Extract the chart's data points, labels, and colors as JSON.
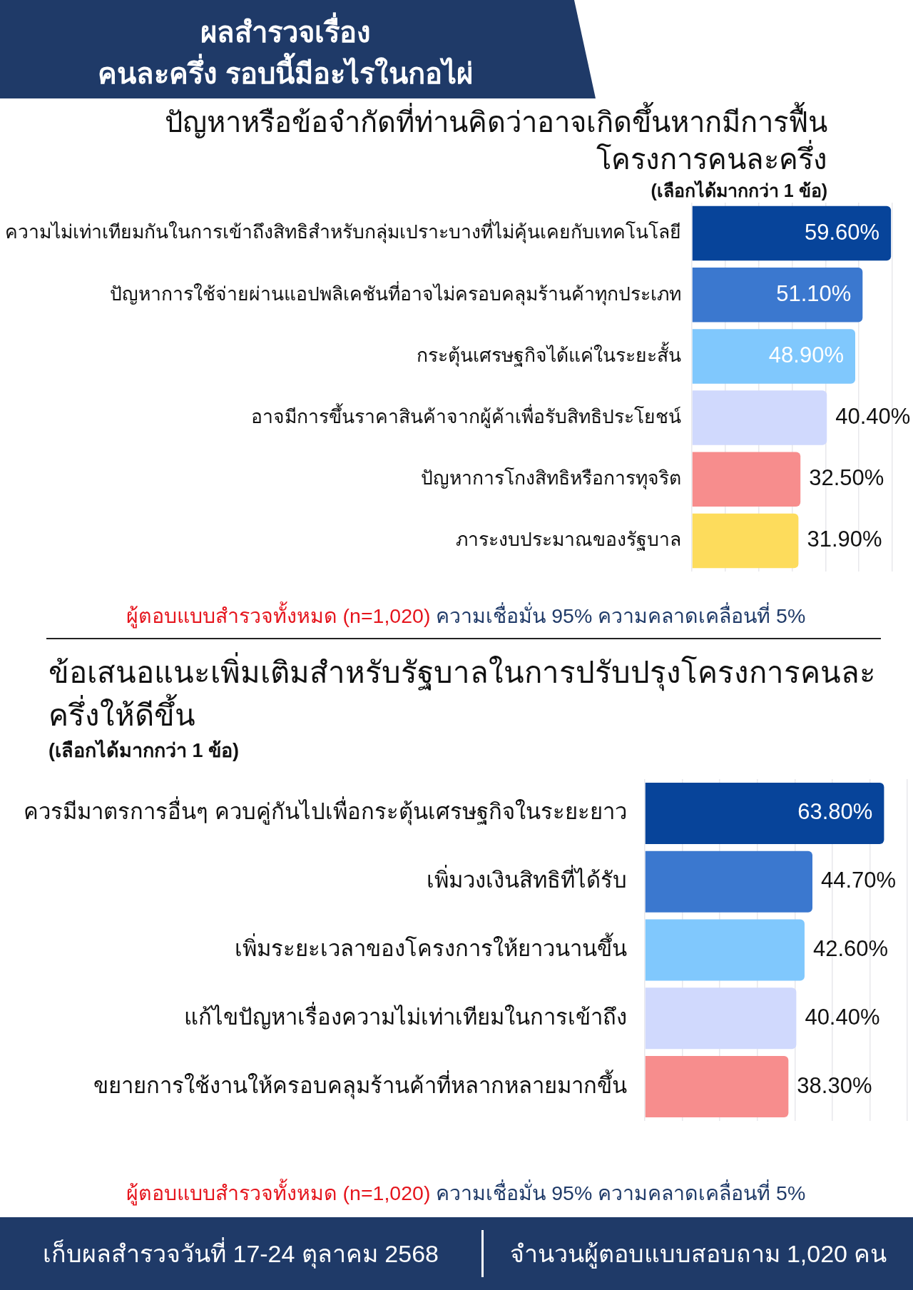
{
  "chart_data": [
    {
      "type": "other",
      "title": "ผลสำรวจเรื่อง\nคนละครึ่ง รอบนี้มีอะไรในกอไผ่"
    },
    {
      "type": "bar",
      "orientation": "horizontal",
      "title": "ปัญหาหรือข้อจำกัดที่ท่านคิดว่าอาจเกิดขึ้นหากมีการฟื้นโครงการคนละครึ่ง",
      "subtitle": "(เลือกได้มากกว่า 1 ข้อ)",
      "categories": [
        "ความไม่เท่าเทียมกันในการเข้าถึงสิทธิสำหรับกลุ่มเปราะบางที่ไม่คุ้นเคยกับเทคโนโลยี",
        "ปัญหาการใช้จ่ายผ่านแอปพลิเคชันที่อาจไม่ครอบคลุมร้านค้าทุกประเภท",
        "กระตุ้นเศรษฐกิจได้แค่ในระยะสั้น",
        "อาจมีการขึ้นราคาสินค้าจากผู้ค้าเพื่อรับสิทธิประโยชน์",
        "ปัญหาการโกงสิทธิหรือการทุจริต",
        "ภาระงบประมาณของรัฐบาล"
      ],
      "values": [
        59.6,
        51.1,
        48.9,
        40.4,
        32.5,
        31.9
      ],
      "value_labels": [
        "59.60%",
        "51.10%",
        "48.90%",
        "40.40%",
        "32.50%",
        "31.90%"
      ],
      "colors": [
        "#07449a",
        "#3b78cf",
        "#80c8fd",
        "#d0d9fd",
        "#f78d8d",
        "#fddc5c"
      ],
      "xlim": [
        0,
        60
      ],
      "xticks": [
        {
          "value": 0,
          "label": null
        },
        {
          "value": 10,
          "label": null
        },
        {
          "value": 20,
          "label": null
        },
        {
          "value": 30,
          "label": null
        },
        {
          "value": 40,
          "label": null
        },
        {
          "value": 50,
          "label": null
        },
        {
          "value": 60,
          "label": null
        }
      ],
      "grid": "x",
      "tick_labels": "y",
      "annotations": [
        "ผู้ตอบแบบสำรวจทั้งหมด (n=1,020)",
        "ความเชื่อมั่น 95% ความคลาดเคลื่อนที่ 5%"
      ]
    },
    {
      "type": "bar",
      "orientation": "horizontal",
      "title": "ข้อเสนอแนะเพิ่มเติมสำหรับรัฐบาลในการปรับปรุงโครงการคนละครึ่งให้ดีขึ้น",
      "subtitle": "(เลือกได้มากกว่า 1 ข้อ)",
      "categories": [
        "ควรมีมาตรการอื่นๆ ควบคู่กันไปเพื่อกระตุ้นเศรษฐกิจในระยะยาว",
        "เพิ่มวงเงินสิทธิที่ได้รับ",
        "เพิ่มระยะเวลาของโครงการให้ยาวนานขึ้น",
        "แก้ไขปัญหาเรื่องความไม่เท่าเทียมในการเข้าถึง",
        "ขยายการใช้งานให้ครอบคลุมร้านค้าที่หลากหลายมากขึ้น"
      ],
      "values": [
        63.8,
        44.7,
        42.6,
        40.4,
        38.3
      ],
      "value_labels": [
        "63.80%",
        "44.70%",
        "42.60%",
        "40.40%",
        "38.30%"
      ],
      "colors": [
        "#07449a",
        "#3b78cf",
        "#80c8fd",
        "#d0d9fd",
        "#f78d8d"
      ],
      "xlim": [
        0,
        70
      ],
      "xticks": [
        {
          "value": 0,
          "label": null
        },
        {
          "value": 10,
          "label": null
        },
        {
          "value": 20,
          "label": null
        },
        {
          "value": 30,
          "label": null
        },
        {
          "value": 40,
          "label": null
        },
        {
          "value": 50,
          "label": null
        },
        {
          "value": 60,
          "label": null
        },
        {
          "value": 70,
          "label": null
        }
      ],
      "grid": "x",
      "tick_labels": "y",
      "annotations": [
        "ผู้ตอบแบบสำรวจทั้งหมด (n=1,020)",
        "ความเชื่อมั่น 95% ความคลาดเคลื่อนที่ 5%"
      ]
    },
    {
      "type": "other",
      "annotations": [
        "เก็บผลสำรวจวันที่ 17-24 ตุลาคม 2568",
        "จำนวนผู้ตอบแบบสอบถาม 1,020 คน"
      ]
    }
  ]
}
